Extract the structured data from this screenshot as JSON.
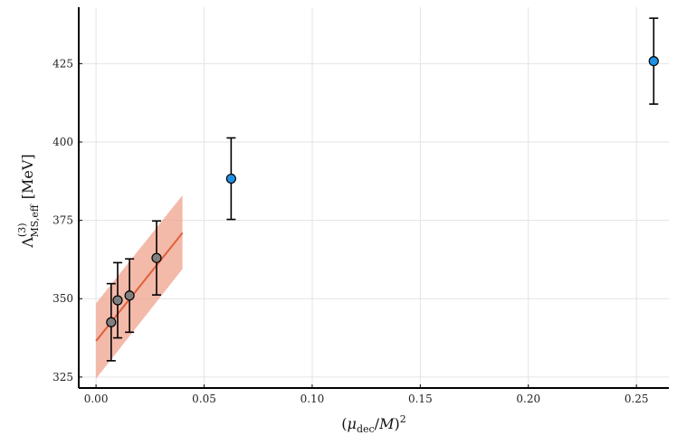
{
  "chart_data": {
    "type": "scatter",
    "xlabel": "(μ_dec/M)^2",
    "ylabel": "Λ^(3)_MS,eff [MeV]",
    "xlim": [
      -0.008,
      0.265
    ],
    "ylim": [
      321.5,
      443
    ],
    "xticks": [
      0.0,
      0.05,
      0.1,
      0.15,
      0.2,
      0.25
    ],
    "xtick_labels": [
      "0.00",
      "0.05",
      "0.10",
      "0.15",
      "0.20",
      "0.25"
    ],
    "yticks": [
      325,
      350,
      375,
      400,
      425
    ],
    "ytick_labels": [
      "325",
      "350",
      "375",
      "400",
      "425"
    ],
    "grid": true,
    "series": [
      {
        "marker": "circle",
        "color": "#7f7f7f",
        "points": [
          {
            "x": 0.007,
            "y": 342.5,
            "err": 12.3
          },
          {
            "x": 0.01,
            "y": 349.5,
            "err": 12.0
          },
          {
            "x": 0.0155,
            "y": 351.0,
            "err": 11.7
          },
          {
            "x": 0.028,
            "y": 363.0,
            "err": 11.8
          }
        ]
      },
      {
        "marker": "circle",
        "color": "#1e90e6",
        "points": [
          {
            "x": 0.0625,
            "y": 388.3,
            "err": 13.0
          },
          {
            "x": 0.258,
            "y": 425.8,
            "err": 13.7
          }
        ]
      }
    ],
    "fit": {
      "color": "#e0603a",
      "band_color": "#f0a894",
      "x_range": [
        0.0,
        0.04
      ],
      "line_y": [
        336.5,
        371.0
      ],
      "band_lower": [
        324.5,
        359.5
      ],
      "band_upper": [
        348.5,
        383.0
      ]
    }
  }
}
